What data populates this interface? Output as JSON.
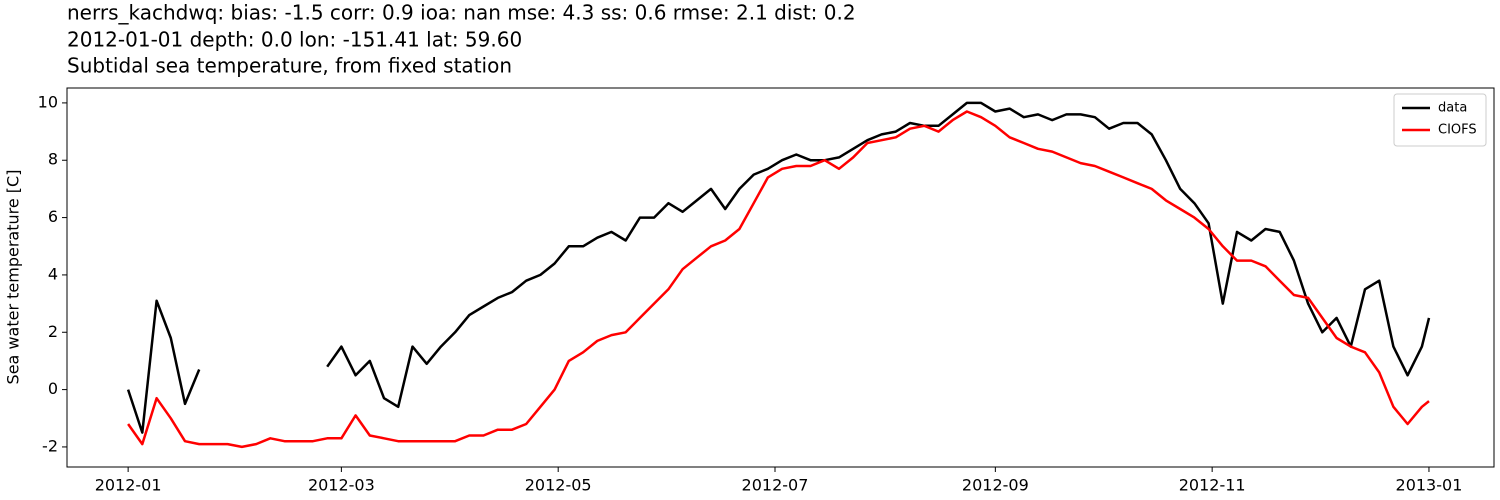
{
  "chart_data": {
    "type": "line",
    "title": [
      "nerrs_kachdwq: bias: -1.5  corr: 0.9  ioa: nan  mse: 4.3  ss: 0.6  rmse: 2.1  dist: 0.2",
      "2012-01-01 depth: 0.0 lon: -151.41 lat: 59.60",
      "Subtidal sea temperature, from fixed station"
    ],
    "ylabel": "Sea water temperature [C]",
    "x": [
      0,
      4,
      8,
      12,
      16,
      20,
      24,
      28,
      32,
      36,
      40,
      44,
      48,
      52,
      56,
      60,
      64,
      68,
      72,
      76,
      80,
      84,
      88,
      92,
      96,
      100,
      104,
      108,
      112,
      116,
      120,
      124,
      128,
      132,
      136,
      140,
      144,
      148,
      152,
      156,
      160,
      164,
      168,
      172,
      176,
      180,
      184,
      188,
      192,
      196,
      200,
      204,
      208,
      212,
      216,
      220,
      224,
      228,
      232,
      236,
      240,
      244,
      248,
      252,
      256,
      260,
      264,
      268,
      272,
      276,
      280,
      284,
      288,
      292,
      296,
      300,
      304,
      308,
      312,
      316,
      320,
      324,
      328,
      332,
      336,
      340,
      344,
      348,
      352,
      356,
      360,
      364,
      366
    ],
    "series": [
      {
        "name": "data",
        "color": "#000000",
        "values": [
          0,
          -1.5,
          3.1,
          1.8,
          -0.5,
          0.7,
          null,
          null,
          null,
          null,
          null,
          null,
          null,
          null,
          0.8,
          1.5,
          0.5,
          1.0,
          -0.3,
          -0.6,
          1.5,
          0.9,
          1.5,
          2.0,
          2.6,
          2.9,
          3.2,
          3.4,
          3.8,
          4.0,
          4.4,
          5.0,
          5.0,
          5.3,
          5.5,
          5.2,
          6.0,
          6.0,
          6.5,
          6.2,
          6.6,
          7.0,
          6.3,
          7.0,
          7.5,
          7.7,
          8.0,
          8.2,
          8.0,
          8.0,
          8.1,
          8.4,
          8.7,
          8.9,
          9.0,
          9.3,
          9.2,
          9.2,
          9.6,
          10.0,
          10.0,
          9.7,
          9.8,
          9.5,
          9.6,
          9.4,
          9.6,
          9.6,
          9.5,
          9.1,
          9.3,
          9.3,
          8.9,
          8.0,
          7.0,
          6.5,
          5.8,
          3.0,
          5.5,
          5.2,
          5.6,
          5.5,
          4.5,
          3.0,
          2.0,
          2.5,
          1.5,
          3.5,
          3.8,
          1.5,
          0.5,
          1.5,
          2.5
        ]
      },
      {
        "name": "CIOFS",
        "color": "#ff0000",
        "values": [
          -1.2,
          -1.9,
          -0.3,
          -1.0,
          -1.8,
          -1.9,
          -1.9,
          -1.9,
          -2.0,
          -1.9,
          -1.7,
          -1.8,
          -1.8,
          -1.8,
          -1.7,
          -1.7,
          -0.9,
          -1.6,
          -1.7,
          -1.8,
          -1.8,
          -1.8,
          -1.8,
          -1.8,
          -1.6,
          -1.6,
          -1.4,
          -1.4,
          -1.2,
          -0.6,
          0.0,
          1.0,
          1.3,
          1.7,
          1.9,
          2.0,
          2.5,
          3.0,
          3.5,
          4.2,
          4.6,
          5.0,
          5.2,
          5.6,
          6.5,
          7.4,
          7.7,
          7.8,
          7.8,
          8.0,
          7.7,
          8.1,
          8.6,
          8.7,
          8.8,
          9.1,
          9.2,
          9.0,
          9.4,
          9.7,
          9.5,
          9.2,
          8.8,
          8.6,
          8.4,
          8.3,
          8.1,
          7.9,
          7.8,
          7.6,
          7.4,
          7.2,
          7.0,
          6.6,
          6.3,
          6.0,
          5.6,
          5.0,
          4.5,
          4.5,
          4.3,
          3.8,
          3.3,
          3.2,
          2.5,
          1.8,
          1.5,
          1.3,
          0.6,
          -0.6,
          -1.2,
          -0.6,
          -0.4
        ]
      }
    ],
    "xlim": [
      -17.2,
      384.3
    ],
    "xticks": [
      {
        "value": 0,
        "label": "2012-01"
      },
      {
        "value": 60,
        "label": "2012-03"
      },
      {
        "value": 121,
        "label": "2012-05"
      },
      {
        "value": 182,
        "label": "2012-07"
      },
      {
        "value": 244,
        "label": "2012-09"
      },
      {
        "value": 305,
        "label": "2012-11"
      },
      {
        "value": 366,
        "label": "2013-01"
      }
    ],
    "ylim": [
      -2.7,
      10.52
    ],
    "yticks": [
      -2,
      0,
      2,
      4,
      6,
      8,
      10
    ],
    "legend": "upper right"
  }
}
